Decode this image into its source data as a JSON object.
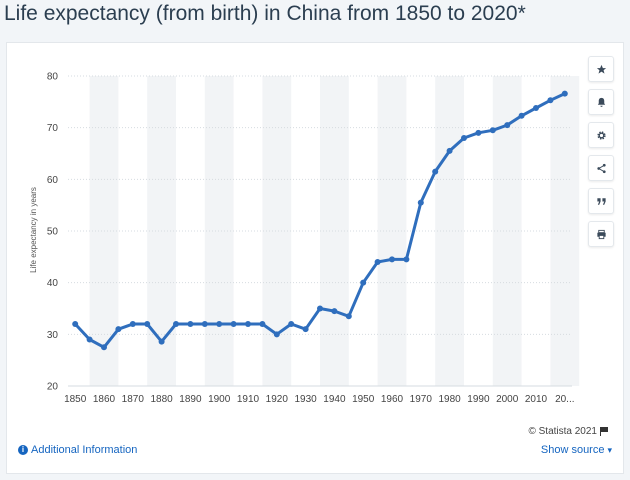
{
  "page": {
    "title": "Life expectancy (from birth) in China from 1850 to 2020*",
    "additional_info": "Additional Information",
    "copyright": "© Statista 2021",
    "show_source": "Show source"
  },
  "toolbar": {
    "icons": [
      "star-icon",
      "bell-icon",
      "gear-icon",
      "share-icon",
      "quote-icon",
      "print-icon"
    ]
  },
  "colors": {
    "line": "#2f6ebd",
    "band": "#f2f4f6",
    "grid": "#d6dbe0"
  },
  "chart_data": {
    "type": "line",
    "title": "Life expectancy (from birth) in China from 1850 to 2020*",
    "xlabel": "",
    "ylabel": "Life expectancy in years",
    "ylim": [
      20,
      80
    ],
    "yticks": [
      20,
      30,
      40,
      50,
      60,
      70,
      80
    ],
    "xticks": [
      "1850",
      "1860",
      "1870",
      "1880",
      "1890",
      "1900",
      "1910",
      "1920",
      "1930",
      "1940",
      "1950",
      "1960",
      "1970",
      "1980",
      "1990",
      "2000",
      "2010",
      "20..."
    ],
    "grid": true,
    "legend": "none",
    "series": [
      {
        "x": [
          1850,
          1855,
          1860,
          1865,
          1870,
          1875,
          1880,
          1885,
          1890,
          1895,
          1900,
          1905,
          1910,
          1915,
          1920,
          1925,
          1930,
          1935,
          1940,
          1945,
          1950,
          1955,
          1960,
          1965,
          1970,
          1975,
          1980,
          1985,
          1990,
          1995,
          2000,
          2005,
          2010,
          2015,
          2020
        ],
        "values": [
          32,
          29,
          27.5,
          31,
          32,
          32,
          28.6,
          32,
          32,
          32,
          32,
          32,
          32,
          32,
          30,
          32,
          31,
          35,
          34.5,
          33.5,
          40,
          44,
          44.5,
          44.5,
          55.5,
          61.5,
          65.5,
          68,
          69,
          69.5,
          70.5,
          72.3,
          73.8,
          75.3,
          76.6
        ]
      }
    ]
  }
}
